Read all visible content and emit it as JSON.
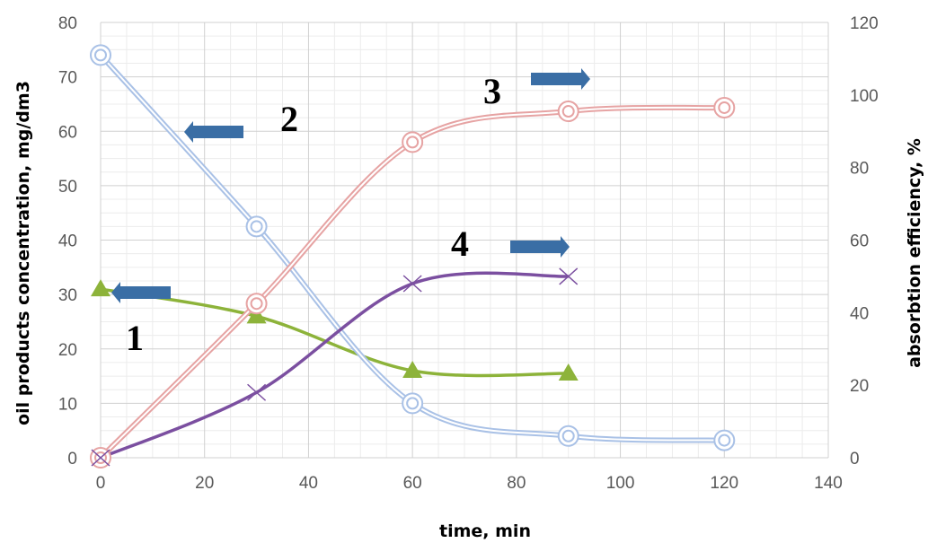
{
  "chart_data": {
    "type": "line",
    "xlabel": "time, min",
    "ylabel": "oil products concentration, mg/dm3",
    "y2label": "absorbtion efficiency, %",
    "xlim": [
      0,
      140
    ],
    "xticks": [
      0,
      20,
      40,
      60,
      80,
      100,
      120,
      140
    ],
    "ylim": [
      0,
      80
    ],
    "yticks": [
      0,
      10,
      20,
      30,
      40,
      50,
      60,
      70,
      80
    ],
    "y2lim": [
      0,
      120
    ],
    "y2ticks": [
      0,
      20,
      40,
      60,
      80,
      100,
      120
    ],
    "grid": true,
    "series": [
      {
        "label": "1",
        "axis": "left",
        "marker": "triangle",
        "color": "#8db33a",
        "x": [
          0,
          30,
          60,
          90
        ],
        "y": [
          31,
          26,
          16,
          15.5
        ]
      },
      {
        "label": "2",
        "axis": "left",
        "marker": "double-circle",
        "color": "#a9c1e6",
        "x": [
          0,
          30,
          60,
          90,
          120
        ],
        "y": [
          74,
          42.5,
          10,
          4,
          3.2
        ]
      },
      {
        "label": "3",
        "axis": "right",
        "marker": "double-circle",
        "color": "#e6a3a3",
        "x": [
          0,
          30,
          60,
          90,
          120
        ],
        "y": [
          0,
          42.5,
          87,
          95.5,
          96.5
        ]
      },
      {
        "label": "4",
        "axis": "right",
        "marker": "x",
        "color": "#7b4fa0",
        "x": [
          0,
          30,
          60,
          90
        ],
        "y": [
          0,
          18,
          48,
          50
        ]
      }
    ],
    "arrow_color": "#3a6ea5"
  }
}
